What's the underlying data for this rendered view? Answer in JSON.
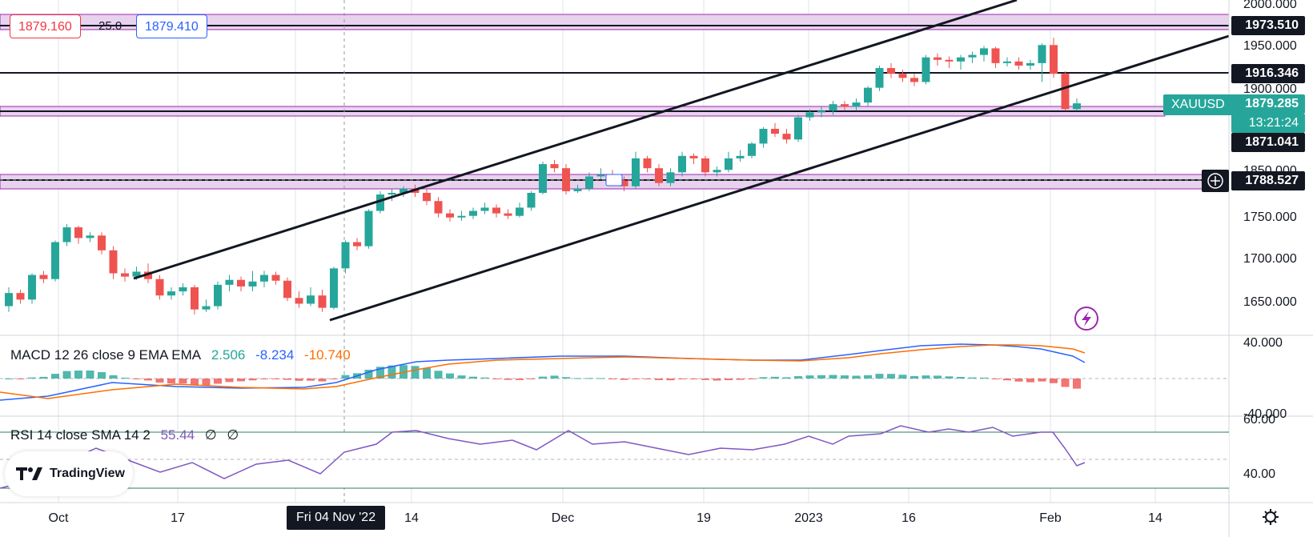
{
  "order_panel": {
    "sell_price": "1879.160",
    "spread": "25.0",
    "buy_price": "1879.410"
  },
  "symbol_tag": "XAUUSD",
  "price_scale": {
    "current_price": "1879.285",
    "countdown": "13:21:24",
    "level_labels": [
      "1973.510",
      "1916.346",
      "1871.041",
      "1788.527"
    ],
    "ticks": [
      "2000.000",
      "1950.000",
      "1900.000",
      "1850.000",
      "1750.000",
      "1700.000",
      "1650.000"
    ]
  },
  "time_scale": {
    "labels": [
      "Oct",
      "17",
      "14",
      "Dec",
      "19",
      "2023",
      "16",
      "Feb",
      "14"
    ],
    "crosshair_label": "Fri 04 Nov '22"
  },
  "macd": {
    "legend": "MACD 12 26 close 9 EMA EMA",
    "values": [
      "2.506",
      "-8.234",
      "-10.740"
    ],
    "ticks": [
      "40.000",
      "-40.000"
    ]
  },
  "rsi": {
    "legend": "RSI 14 close SMA 14 2",
    "values": [
      "55.44",
      "∅",
      "∅"
    ],
    "ticks": [
      "60.00",
      "40.00"
    ]
  },
  "branding": {
    "logo_text": "TradingView"
  },
  "icons": {
    "lightning": "lightning-icon",
    "settings": "gear-icon",
    "add_alert": "plus-circle-icon"
  },
  "colors": {
    "up": "#26a69a",
    "down": "#ef5350",
    "macd_line": "#2962ff",
    "signal_line": "#ff6d00",
    "rsi_line": "#7e57c2",
    "zone_fill": "#e1bee7",
    "zone_border": "#9c27b0"
  },
  "chart_data": {
    "type": "candlestick",
    "symbol": "XAUUSD",
    "candles": [
      {
        "o": 1632,
        "c": 1648,
        "h": 1655,
        "l": 1625
      },
      {
        "o": 1648,
        "c": 1640,
        "h": 1652,
        "l": 1635
      },
      {
        "o": 1640,
        "c": 1670,
        "h": 1672,
        "l": 1635
      },
      {
        "o": 1670,
        "c": 1665,
        "h": 1675,
        "l": 1660
      },
      {
        "o": 1665,
        "c": 1710,
        "h": 1712,
        "l": 1662
      },
      {
        "o": 1710,
        "c": 1728,
        "h": 1732,
        "l": 1705
      },
      {
        "o": 1728,
        "c": 1715,
        "h": 1730,
        "l": 1708
      },
      {
        "o": 1715,
        "c": 1718,
        "h": 1722,
        "l": 1710
      },
      {
        "o": 1718,
        "c": 1700,
        "h": 1722,
        "l": 1695
      },
      {
        "o": 1700,
        "c": 1672,
        "h": 1705,
        "l": 1665
      },
      {
        "o": 1672,
        "c": 1668,
        "h": 1678,
        "l": 1662
      },
      {
        "o": 1668,
        "c": 1674,
        "h": 1680,
        "l": 1664
      },
      {
        "o": 1674,
        "c": 1665,
        "h": 1684,
        "l": 1660
      },
      {
        "o": 1665,
        "c": 1645,
        "h": 1670,
        "l": 1640
      },
      {
        "o": 1645,
        "c": 1650,
        "h": 1655,
        "l": 1640
      },
      {
        "o": 1650,
        "c": 1655,
        "h": 1660,
        "l": 1645
      },
      {
        "o": 1655,
        "c": 1628,
        "h": 1658,
        "l": 1622
      },
      {
        "o": 1628,
        "c": 1632,
        "h": 1640,
        "l": 1625
      },
      {
        "o": 1632,
        "c": 1658,
        "h": 1662,
        "l": 1628
      },
      {
        "o": 1658,
        "c": 1664,
        "h": 1670,
        "l": 1650
      },
      {
        "o": 1664,
        "c": 1656,
        "h": 1668,
        "l": 1650
      },
      {
        "o": 1656,
        "c": 1662,
        "h": 1675,
        "l": 1650
      },
      {
        "o": 1662,
        "c": 1670,
        "h": 1675,
        "l": 1655
      },
      {
        "o": 1670,
        "c": 1663,
        "h": 1674,
        "l": 1658
      },
      {
        "o": 1663,
        "c": 1642,
        "h": 1667,
        "l": 1638
      },
      {
        "o": 1642,
        "c": 1635,
        "h": 1650,
        "l": 1630
      },
      {
        "o": 1635,
        "c": 1645,
        "h": 1655,
        "l": 1632
      },
      {
        "o": 1645,
        "c": 1630,
        "h": 1652,
        "l": 1625
      },
      {
        "o": 1630,
        "c": 1678,
        "h": 1680,
        "l": 1628
      },
      {
        "o": 1678,
        "c": 1710,
        "h": 1712,
        "l": 1672
      },
      {
        "o": 1710,
        "c": 1705,
        "h": 1715,
        "l": 1700
      },
      {
        "o": 1705,
        "c": 1748,
        "h": 1750,
        "l": 1702
      },
      {
        "o": 1748,
        "c": 1768,
        "h": 1772,
        "l": 1745
      },
      {
        "o": 1768,
        "c": 1770,
        "h": 1775,
        "l": 1760
      },
      {
        "o": 1770,
        "c": 1775,
        "h": 1778,
        "l": 1765
      },
      {
        "o": 1775,
        "c": 1770,
        "h": 1780,
        "l": 1765
      },
      {
        "o": 1770,
        "c": 1760,
        "h": 1775,
        "l": 1755
      },
      {
        "o": 1760,
        "c": 1745,
        "h": 1765,
        "l": 1740
      },
      {
        "o": 1745,
        "c": 1740,
        "h": 1750,
        "l": 1735
      },
      {
        "o": 1740,
        "c": 1742,
        "h": 1748,
        "l": 1736
      },
      {
        "o": 1742,
        "c": 1748,
        "h": 1752,
        "l": 1738
      },
      {
        "o": 1748,
        "c": 1752,
        "h": 1758,
        "l": 1744
      },
      {
        "o": 1752,
        "c": 1745,
        "h": 1756,
        "l": 1740
      },
      {
        "o": 1745,
        "c": 1742,
        "h": 1750,
        "l": 1738
      },
      {
        "o": 1742,
        "c": 1752,
        "h": 1758,
        "l": 1740
      },
      {
        "o": 1752,
        "c": 1770,
        "h": 1772,
        "l": 1748
      },
      {
        "o": 1770,
        "c": 1805,
        "h": 1808,
        "l": 1768
      },
      {
        "o": 1805,
        "c": 1800,
        "h": 1810,
        "l": 1795
      },
      {
        "o": 1800,
        "c": 1772,
        "h": 1805,
        "l": 1768
      },
      {
        "o": 1772,
        "c": 1775,
        "h": 1780,
        "l": 1770
      },
      {
        "o": 1775,
        "c": 1790,
        "h": 1795,
        "l": 1772
      },
      {
        "o": 1790,
        "c": 1792,
        "h": 1800,
        "l": 1786
      },
      {
        "o": 1792,
        "c": 1785,
        "h": 1798,
        "l": 1780
      },
      {
        "o": 1785,
        "c": 1778,
        "h": 1790,
        "l": 1772
      },
      {
        "o": 1778,
        "c": 1812,
        "h": 1820,
        "l": 1775
      },
      {
        "o": 1812,
        "c": 1800,
        "h": 1815,
        "l": 1795
      },
      {
        "o": 1800,
        "c": 1782,
        "h": 1805,
        "l": 1778
      },
      {
        "o": 1782,
        "c": 1795,
        "h": 1800,
        "l": 1778
      },
      {
        "o": 1795,
        "c": 1815,
        "h": 1820,
        "l": 1790
      },
      {
        "o": 1815,
        "c": 1812,
        "h": 1818,
        "l": 1805
      },
      {
        "o": 1812,
        "c": 1795,
        "h": 1815,
        "l": 1790
      },
      {
        "o": 1795,
        "c": 1798,
        "h": 1802,
        "l": 1790
      },
      {
        "o": 1798,
        "c": 1812,
        "h": 1820,
        "l": 1795
      },
      {
        "o": 1812,
        "c": 1815,
        "h": 1822,
        "l": 1808
      },
      {
        "o": 1815,
        "c": 1830,
        "h": 1832,
        "l": 1812
      },
      {
        "o": 1830,
        "c": 1848,
        "h": 1850,
        "l": 1825
      },
      {
        "o": 1848,
        "c": 1842,
        "h": 1855,
        "l": 1838
      },
      {
        "o": 1842,
        "c": 1835,
        "h": 1848,
        "l": 1830
      },
      {
        "o": 1835,
        "c": 1862,
        "h": 1865,
        "l": 1832
      },
      {
        "o": 1862,
        "c": 1868,
        "h": 1872,
        "l": 1858
      },
      {
        "o": 1868,
        "c": 1870,
        "h": 1875,
        "l": 1862
      },
      {
        "o": 1870,
        "c": 1878,
        "h": 1882,
        "l": 1865
      },
      {
        "o": 1878,
        "c": 1875,
        "h": 1882,
        "l": 1870
      },
      {
        "o": 1875,
        "c": 1880,
        "h": 1885,
        "l": 1870
      },
      {
        "o": 1880,
        "c": 1898,
        "h": 1900,
        "l": 1876
      },
      {
        "o": 1898,
        "c": 1922,
        "h": 1925,
        "l": 1894
      },
      {
        "o": 1922,
        "c": 1915,
        "h": 1928,
        "l": 1910
      },
      {
        "o": 1915,
        "c": 1910,
        "h": 1920,
        "l": 1905
      },
      {
        "o": 1910,
        "c": 1905,
        "h": 1915,
        "l": 1900
      },
      {
        "o": 1905,
        "c": 1935,
        "h": 1938,
        "l": 1902
      },
      {
        "o": 1935,
        "c": 1932,
        "h": 1940,
        "l": 1925
      },
      {
        "o": 1932,
        "c": 1930,
        "h": 1936,
        "l": 1922
      },
      {
        "o": 1930,
        "c": 1935,
        "h": 1938,
        "l": 1920
      },
      {
        "o": 1935,
        "c": 1938,
        "h": 1942,
        "l": 1928
      },
      {
        "o": 1938,
        "c": 1946,
        "h": 1949,
        "l": 1930
      },
      {
        "o": 1946,
        "c": 1928,
        "h": 1948,
        "l": 1922
      },
      {
        "o": 1928,
        "c": 1930,
        "h": 1935,
        "l": 1924
      },
      {
        "o": 1930,
        "c": 1925,
        "h": 1935,
        "l": 1920
      },
      {
        "o": 1925,
        "c": 1928,
        "h": 1932,
        "l": 1920
      },
      {
        "o": 1928,
        "c": 1950,
        "h": 1952,
        "l": 1905
      },
      {
        "o": 1950,
        "c": 1915,
        "h": 1959,
        "l": 1910
      },
      {
        "o": 1915,
        "c": 1872,
        "h": 1918,
        "l": 1870
      },
      {
        "o": 1872,
        "c": 1879,
        "h": 1885,
        "l": 1870
      }
    ],
    "horizontal_levels": [
      1973.51,
      1916.346,
      1871.041,
      1788.527
    ],
    "price_range": [
      1615,
      2000
    ]
  }
}
